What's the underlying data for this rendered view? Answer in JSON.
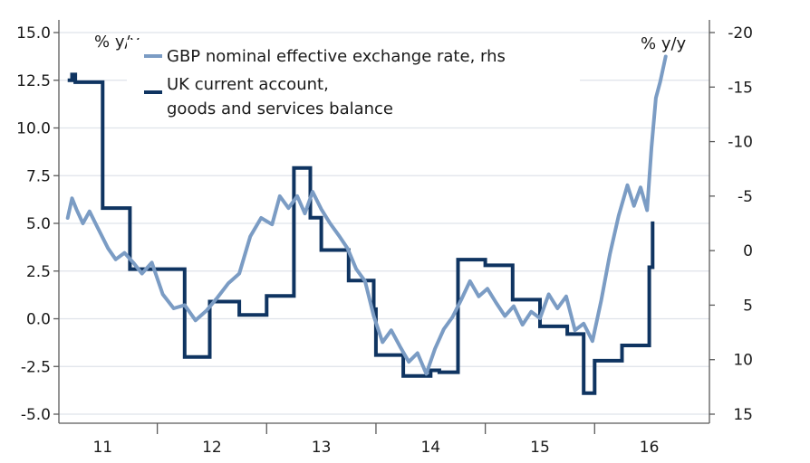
{
  "chart_data": {
    "type": "line",
    "title": "",
    "left_axis": {
      "label": "% y/y",
      "range": [
        -5,
        15
      ],
      "ticks": [
        "15.0",
        "12.5",
        "10.0",
        "7.5",
        "5.0",
        "2.5",
        "0.0",
        "-2.5",
        "-5.0"
      ],
      "tick_values": [
        15,
        12.5,
        10,
        7.5,
        5,
        2.5,
        0,
        -2.5,
        -5
      ]
    },
    "right_axis": {
      "label": "% y/y",
      "inverted": true,
      "range": [
        -20,
        15
      ],
      "ticks": [
        "-20",
        "-15",
        "-10",
        "-5",
        "0",
        "5",
        "10",
        "15"
      ],
      "tick_values": [
        -20,
        -15,
        -10,
        -5,
        0,
        5,
        10,
        15
      ]
    },
    "x_axis": {
      "range": [
        2010.6,
        2016.55
      ],
      "tick_labels": [
        "11",
        "12",
        "13",
        "14",
        "15",
        "16"
      ],
      "label_positions": [
        2011,
        2012,
        2013,
        2014,
        2015,
        2016
      ],
      "tick_positions": [
        2011.5,
        2012.5,
        2013.5,
        2014.5,
        2015.5
      ],
      "grid": true
    },
    "legend": {
      "placement": "top-left",
      "items": [
        {
          "line1": "GBP nominal effective exchange rate, rhs",
          "line2": "",
          "color": "#7b9cc4"
        },
        {
          "line1": "UK current account,",
          "line2": "goods and services balance",
          "color": "#0f3461"
        }
      ]
    },
    "series": [
      {
        "name": "UK current account, goods and services balance",
        "axis": "left",
        "color": "#0f3461",
        "step": true,
        "x": [
          2010.68,
          2010.72,
          2010.75,
          2011.0,
          2011.25,
          2011.5,
          2011.75,
          2011.98,
          2012.25,
          2012.5,
          2012.75,
          2012.9,
          2013.0,
          2013.25,
          2013.48,
          2013.5,
          2013.75,
          2014.0,
          2014.08,
          2014.25,
          2014.5,
          2014.75,
          2015.0,
          2015.25,
          2015.4,
          2015.5,
          2015.75,
          2016.0,
          2016.03
        ],
        "y": [
          12.5,
          12.8,
          12.4,
          5.8,
          2.6,
          2.6,
          -2.0,
          0.9,
          0.2,
          1.2,
          7.9,
          5.3,
          3.6,
          2.0,
          0.5,
          -1.9,
          -3.0,
          -2.7,
          -2.8,
          3.1,
          2.8,
          1.0,
          -0.4,
          -0.8,
          -3.9,
          -2.2,
          -1.4,
          2.7,
          5.1
        ]
      },
      {
        "name": "GBP nominal effective exchange rate",
        "axis": "right",
        "color": "#7b9cc4",
        "step": false,
        "x": [
          2010.68,
          2010.72,
          2010.76,
          2010.82,
          2010.88,
          2010.95,
          2011.05,
          2011.12,
          2011.2,
          2011.28,
          2011.36,
          2011.45,
          2011.55,
          2011.65,
          2011.75,
          2011.85,
          2011.95,
          2012.05,
          2012.15,
          2012.25,
          2012.35,
          2012.45,
          2012.55,
          2012.62,
          2012.7,
          2012.78,
          2012.85,
          2012.92,
          2013.0,
          2013.08,
          2013.16,
          2013.24,
          2013.32,
          2013.4,
          2013.48,
          2013.56,
          2013.64,
          2013.72,
          2013.8,
          2013.88,
          2013.96,
          2014.04,
          2014.12,
          2014.2,
          2014.28,
          2014.36,
          2014.44,
          2014.52,
          2014.6,
          2014.68,
          2014.76,
          2014.84,
          2014.92,
          2015.0,
          2015.08,
          2015.16,
          2015.24,
          2015.32,
          2015.4,
          2015.48,
          2015.56,
          2015.64,
          2015.72,
          2015.8,
          2015.86,
          2015.92,
          2015.98,
          2016.02,
          2016.06,
          2016.1,
          2016.15
        ],
        "y": [
          -3.0,
          -4.8,
          -3.8,
          -2.5,
          -3.6,
          -2.2,
          -0.2,
          0.8,
          0.2,
          1.1,
          2.1,
          1.1,
          4.0,
          5.3,
          5.0,
          6.4,
          5.5,
          4.3,
          3.0,
          2.1,
          -1.3,
          -3.0,
          -2.4,
          -5.0,
          -3.9,
          -5.0,
          -3.4,
          -5.4,
          -3.8,
          -2.5,
          -1.4,
          -0.2,
          1.7,
          2.8,
          6.0,
          8.4,
          7.3,
          8.8,
          10.2,
          9.4,
          11.3,
          9.0,
          7.2,
          6.1,
          4.5,
          2.8,
          4.2,
          3.5,
          4.8,
          6.0,
          5.1,
          6.8,
          5.6,
          6.2,
          4.0,
          5.3,
          4.2,
          7.3,
          6.7,
          8.3,
          4.6,
          0.3,
          -3.2,
          -6.0,
          -4.1,
          -5.8,
          -3.7,
          -9.4,
          -14.0,
          -15.5,
          -17.8
        ]
      }
    ]
  }
}
